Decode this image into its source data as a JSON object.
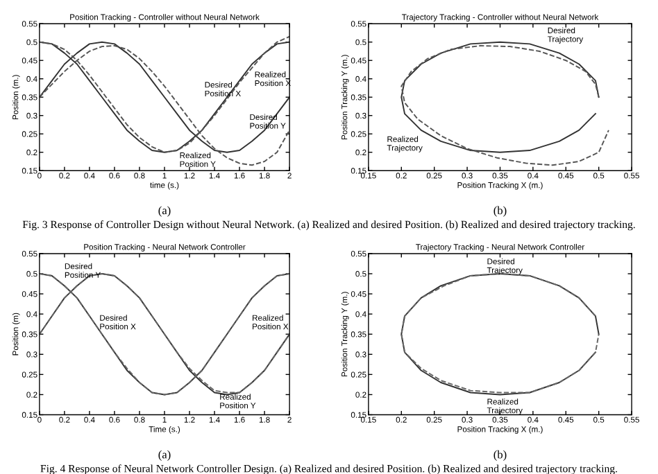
{
  "chart_data": [
    {
      "type": "line",
      "title": "Position Tracking - Controller without Neural Network",
      "xlabel": "time (s.)",
      "ylabel": "Position (m.)",
      "legend": false,
      "grid": false,
      "x": [
        0,
        0.1,
        0.2,
        0.3,
        0.4,
        0.5,
        0.6,
        0.7,
        0.8,
        0.9,
        1,
        1.1,
        1.2,
        1.3,
        1.4,
        1.5,
        1.6,
        1.7,
        1.8,
        1.9,
        2
      ],
      "xlim": [
        0,
        2
      ],
      "xticks": [
        0,
        0.2,
        0.4,
        0.6,
        0.8,
        1,
        1.2,
        1.4,
        1.6,
        1.8,
        2
      ],
      "ylim": [
        0.15,
        0.55
      ],
      "yticks": [
        0.15,
        0.2,
        0.25,
        0.3,
        0.35,
        0.4,
        0.45,
        0.5,
        0.55
      ],
      "series": [
        {
          "color": "#333333",
          "line_style": "solid",
          "values": [
            0.5,
            0.495,
            0.47,
            0.44,
            0.395,
            0.35,
            0.305,
            0.26,
            0.23,
            0.205,
            0.2,
            0.205,
            0.23,
            0.26,
            0.305,
            0.35,
            0.395,
            0.44,
            0.47,
            0.495,
            0.5
          ]
        },
        {
          "color": "#333333",
          "line_style": "solid",
          "values": [
            0.35,
            0.395,
            0.44,
            0.47,
            0.495,
            0.5,
            0.495,
            0.47,
            0.44,
            0.395,
            0.35,
            0.305,
            0.26,
            0.23,
            0.205,
            0.2,
            0.205,
            0.23,
            0.26,
            0.305,
            0.35
          ]
        },
        {
          "color": "#555555",
          "line_style": "dashed",
          "values": [
            0.5,
            0.495,
            0.48,
            0.45,
            0.41,
            0.365,
            0.32,
            0.275,
            0.24,
            0.215,
            0.2,
            0.205,
            0.225,
            0.26,
            0.3,
            0.345,
            0.39,
            0.43,
            0.47,
            0.5,
            0.515
          ]
        },
        {
          "color": "#555555",
          "line_style": "dashed",
          "values": [
            0.35,
            0.385,
            0.42,
            0.45,
            0.475,
            0.488,
            0.49,
            0.48,
            0.455,
            0.42,
            0.38,
            0.335,
            0.29,
            0.245,
            0.21,
            0.185,
            0.17,
            0.165,
            0.175,
            0.2,
            0.26
          ]
        }
      ],
      "annotations": [
        "(a)",
        "Desired\nPosition X",
        "Realized\nPosition X",
        "Desired\nPosition Y",
        "Realized\nPosition Y"
      ]
    },
    {
      "type": "line",
      "title": "Trajectory Tracking - Controller without Neural Network",
      "xlabel": "Position Tracking X (m.)",
      "ylabel": "Position Tracking Y (m.)",
      "legend": false,
      "grid": false,
      "xlim": [
        0.15,
        0.55
      ],
      "xticks": [
        0.15,
        0.2,
        0.25,
        0.3,
        0.35,
        0.4,
        0.45,
        0.5,
        0.55
      ],
      "ylim": [
        0.15,
        0.55
      ],
      "yticks": [
        0.15,
        0.2,
        0.25,
        0.3,
        0.35,
        0.4,
        0.45,
        0.5,
        0.55
      ],
      "series": [
        {
          "color": "#333333",
          "line_style": "solid",
          "x": [
            0.5,
            0.495,
            0.47,
            0.44,
            0.395,
            0.35,
            0.305,
            0.26,
            0.23,
            0.205,
            0.2,
            0.205,
            0.23,
            0.26,
            0.305,
            0.35,
            0.395,
            0.44,
            0.47,
            0.495
          ],
          "values": [
            0.35,
            0.395,
            0.44,
            0.47,
            0.495,
            0.5,
            0.495,
            0.47,
            0.44,
            0.395,
            0.35,
            0.305,
            0.26,
            0.23,
            0.205,
            0.2,
            0.205,
            0.23,
            0.26,
            0.305
          ]
        },
        {
          "color": "#555555",
          "line_style": "dashed",
          "x": [
            0.5,
            0.495,
            0.48,
            0.45,
            0.41,
            0.365,
            0.32,
            0.275,
            0.24,
            0.215,
            0.2,
            0.205,
            0.225,
            0.26,
            0.3,
            0.345,
            0.39,
            0.43,
            0.47,
            0.5,
            0.515
          ],
          "values": [
            0.35,
            0.385,
            0.42,
            0.45,
            0.475,
            0.488,
            0.49,
            0.48,
            0.455,
            0.42,
            0.38,
            0.335,
            0.29,
            0.245,
            0.21,
            0.185,
            0.17,
            0.165,
            0.175,
            0.2,
            0.26
          ]
        }
      ],
      "annotations": [
        "(b)",
        "Fig. 3 Response of Controller Design without Neural Network. (a) Realized and desired Position. (b) Realized and desired trajectory tracking.",
        "Desired\nTrajectory",
        "Realized\nTrajectory"
      ]
    },
    {
      "type": "line",
      "title": "Position Tracking - Neural Network Controller",
      "xlabel": "Time (s.)",
      "ylabel": "Position (m)",
      "legend": false,
      "grid": false,
      "x": [
        0,
        0.1,
        0.2,
        0.3,
        0.4,
        0.5,
        0.6,
        0.7,
        0.8,
        0.9,
        1,
        1.1,
        1.2,
        1.3,
        1.4,
        1.5,
        1.6,
        1.7,
        1.8,
        1.9,
        2
      ],
      "xlim": [
        0,
        2
      ],
      "xticks": [
        0,
        0.2,
        0.4,
        0.6,
        0.8,
        1,
        1.2,
        1.4,
        1.6,
        1.8,
        2
      ],
      "ylim": [
        0.15,
        0.55
      ],
      "yticks": [
        0.15,
        0.2,
        0.25,
        0.3,
        0.35,
        0.4,
        0.45,
        0.5,
        0.55
      ],
      "series": [
        {
          "color": "#333333",
          "line_style": "solid",
          "values": [
            0.5,
            0.495,
            0.47,
            0.44,
            0.395,
            0.35,
            0.305,
            0.26,
            0.23,
            0.205,
            0.2,
            0.205,
            0.23,
            0.26,
            0.305,
            0.35,
            0.395,
            0.44,
            0.47,
            0.495,
            0.5
          ]
        },
        {
          "color": "#333333",
          "line_style": "solid",
          "values": [
            0.35,
            0.395,
            0.44,
            0.47,
            0.495,
            0.5,
            0.495,
            0.47,
            0.44,
            0.395,
            0.35,
            0.305,
            0.26,
            0.23,
            0.205,
            0.2,
            0.205,
            0.23,
            0.26,
            0.305,
            0.35
          ]
        },
        {
          "color": "#666666",
          "line_style": "dashed",
          "values": [
            0.5,
            0.495,
            0.47,
            0.44,
            0.395,
            0.35,
            0.305,
            0.265,
            0.23,
            0.205,
            0.2,
            0.205,
            0.23,
            0.26,
            0.305,
            0.35,
            0.395,
            0.44,
            0.47,
            0.495,
            0.5
          ]
        },
        {
          "color": "#666666",
          "line_style": "dashed",
          "values": [
            0.35,
            0.395,
            0.44,
            0.47,
            0.495,
            0.5,
            0.495,
            0.47,
            0.44,
            0.395,
            0.35,
            0.305,
            0.265,
            0.235,
            0.21,
            0.205,
            0.205,
            0.23,
            0.26,
            0.305,
            0.35
          ]
        }
      ],
      "annotations": [
        "(a)",
        "Desired\nPosition Y",
        "Desired\nPosition X",
        "Realized\nPosition X",
        "Realized\nPosition Y"
      ]
    },
    {
      "type": "line",
      "title": "Trajectory Tracking - Neural Network Controller",
      "xlabel": "Position Tracking X (m.)",
      "ylabel": "Position Tracking Y (m.)",
      "legend": false,
      "grid": false,
      "xlim": [
        0.15,
        0.55
      ],
      "xticks": [
        0.15,
        0.2,
        0.25,
        0.3,
        0.35,
        0.4,
        0.45,
        0.5,
        0.55
      ],
      "ylim": [
        0.15,
        0.55
      ],
      "yticks": [
        0.15,
        0.2,
        0.25,
        0.3,
        0.35,
        0.4,
        0.45,
        0.5,
        0.55
      ],
      "series": [
        {
          "color": "#333333",
          "line_style": "solid",
          "x": [
            0.5,
            0.495,
            0.47,
            0.44,
            0.395,
            0.35,
            0.305,
            0.26,
            0.23,
            0.205,
            0.2,
            0.205,
            0.23,
            0.26,
            0.305,
            0.35,
            0.395,
            0.44,
            0.47,
            0.495
          ],
          "values": [
            0.35,
            0.395,
            0.44,
            0.47,
            0.495,
            0.5,
            0.495,
            0.47,
            0.44,
            0.395,
            0.35,
            0.305,
            0.26,
            0.23,
            0.205,
            0.2,
            0.205,
            0.23,
            0.26,
            0.305
          ]
        },
        {
          "color": "#666666",
          "line_style": "dashed",
          "x": [
            0.495,
            0.47,
            0.44,
            0.395,
            0.35,
            0.305,
            0.265,
            0.23,
            0.205,
            0.2,
            0.205,
            0.23,
            0.26,
            0.305,
            0.35,
            0.395,
            0.44,
            0.47,
            0.495,
            0.5
          ],
          "values": [
            0.395,
            0.44,
            0.47,
            0.495,
            0.5,
            0.495,
            0.47,
            0.44,
            0.395,
            0.35,
            0.305,
            0.265,
            0.235,
            0.21,
            0.205,
            0.205,
            0.23,
            0.26,
            0.305,
            0.35
          ]
        }
      ],
      "annotations": [
        "(b)",
        "Fig. 4 Response of Neural Network Controller Design. (a) Realized and desired Position. (b) Realized and desired trajectory tracking.",
        "Desired\nTrajectory",
        "Realized\nTrajectory"
      ]
    }
  ]
}
